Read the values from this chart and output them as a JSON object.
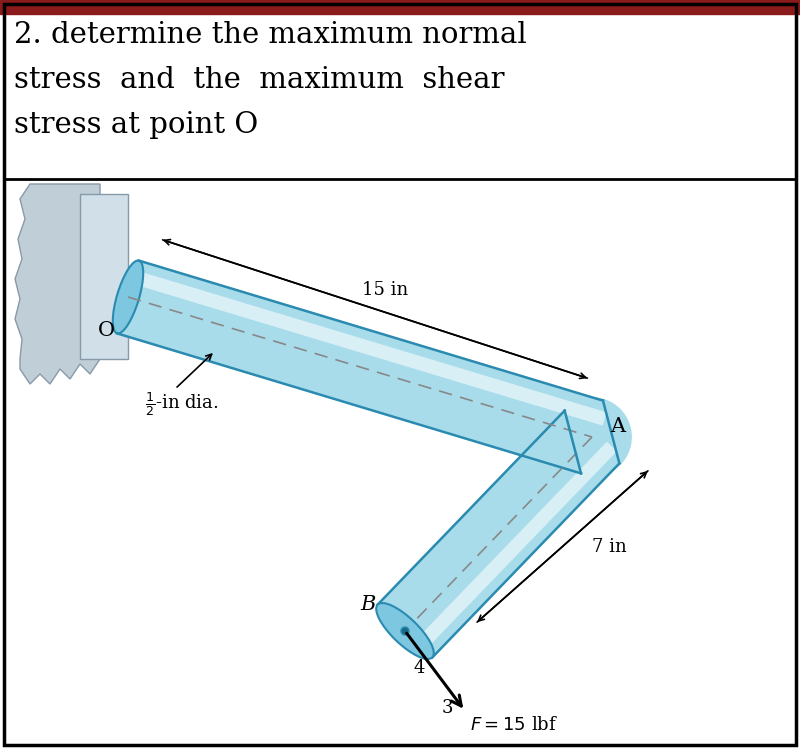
{
  "title_line1": "2. determine the maximum normal",
  "title_line2": "stress  and  the  maximum  shear",
  "title_line3": "stress at point O",
  "title_bg": "#8B1A1A",
  "header_bg": "#ffffff",
  "tube_color_light": "#a8dcea",
  "tube_color_mid": "#7dc8e0",
  "tube_color_dark": "#4db0d0",
  "tube_edge": "#2a8ab0",
  "wall_fill": "#b8ccd8",
  "wall_edge": "#8899a8",
  "label_15in": "15 in",
  "label_7in": "7 in",
  "label_dia": "$\\frac{1}{2}$-in dia.",
  "label_F": "$F = 15$ lbf",
  "label_O": "O",
  "label_A": "A",
  "label_B": "B",
  "label_4": "4",
  "label_3": "3",
  "font_size_title": 21,
  "font_size_label": 13
}
